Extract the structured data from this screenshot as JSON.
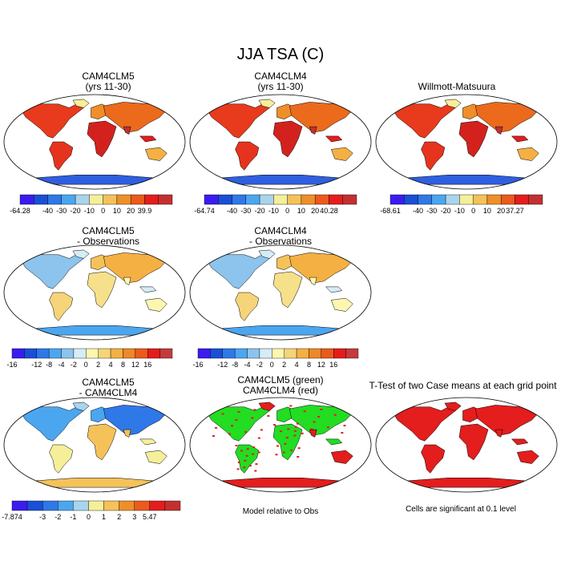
{
  "title": "JJA TSA (C)",
  "panels": [
    {
      "id": "p1",
      "title_lines": [
        "CAM4CLM5",
        "(yrs 11-30)"
      ],
      "scheme": "abs"
    },
    {
      "id": "p2",
      "title_lines": [
        "CAM4CLM4",
        "(yrs 11-30)"
      ],
      "scheme": "abs"
    },
    {
      "id": "p3",
      "title_lines": [
        "Willmott-Matsuura"
      ],
      "scheme": "abs"
    },
    {
      "id": "p4",
      "title_lines": [
        "CAM4CLM5",
        "- Observations"
      ],
      "scheme": "diff"
    },
    {
      "id": "p5",
      "title_lines": [
        "CAM4CLM4",
        "- Observations"
      ],
      "scheme": "diff"
    },
    {
      "id": "p6",
      "title_lines": [
        "CAM4CLM5",
        "- CAM4CLM4"
      ],
      "scheme": "diff2"
    },
    {
      "id": "p7",
      "title_lines": [
        "CAM4CLM5 (green)",
        "CAM4CLM4 (red)"
      ],
      "scheme": "greenred"
    },
    {
      "id": "p8",
      "title_lines": [
        "T-Test of two Case means at each grid point"
      ],
      "scheme": "red"
    }
  ],
  "colorbars": {
    "abs_colors": [
      "#3b1cf0",
      "#1a4fd6",
      "#2f78e8",
      "#4ba6f0",
      "#a8d4ee",
      "#f6ef9a",
      "#f5c25a",
      "#ee8f29",
      "#ec5a1c",
      "#e41d1d",
      "#c4302f"
    ],
    "diff_colors": [
      "#3b1cf0",
      "#1a4fd6",
      "#2f78e8",
      "#4ba6f0",
      "#8cc4ee",
      "#d6ecf6",
      "#fdf6b0",
      "#f6d479",
      "#f5b043",
      "#ee8828",
      "#ea5a1c",
      "#e41c1c",
      "#c43b3b"
    ],
    "diff2_colors": [
      "#3b1cf0",
      "#1a4fd6",
      "#2f78e8",
      "#4ba6f0",
      "#a8d4ee",
      "#f6ef9a",
      "#f5c25a",
      "#ee8f29",
      "#ec5a1c",
      "#e41d1d",
      "#c4302f"
    ],
    "cb1_labels": [
      "-64.28",
      "-40",
      "-30",
      "-20",
      "-10",
      "0",
      "10",
      "20",
      "39.9"
    ],
    "cb2_labels": [
      "-64.74",
      "-40",
      "-30",
      "-20",
      "-10",
      "0",
      "10",
      "20",
      "40.28"
    ],
    "cb3_labels": [
      "-68.61",
      "-40",
      "-30",
      "-20",
      "-10",
      "0",
      "10",
      "20",
      "37.27"
    ],
    "cb4_labels": [
      "-16",
      "-12",
      "-8",
      "-4",
      "-2",
      "0",
      "2",
      "4",
      "8",
      "12",
      "16"
    ],
    "cb5_labels": [
      "-16",
      "-12",
      "-8",
      "-4",
      "-2",
      "0",
      "2",
      "4",
      "8",
      "12",
      "16"
    ],
    "cb6_labels": [
      "-7.874",
      "-3",
      "-2",
      "-1",
      "0",
      "1",
      "2",
      "3",
      "5.47"
    ]
  },
  "notes": {
    "model_rel": "Model relative to Obs",
    "cells_sig": "Cells are significant at 0.1 level"
  }
}
